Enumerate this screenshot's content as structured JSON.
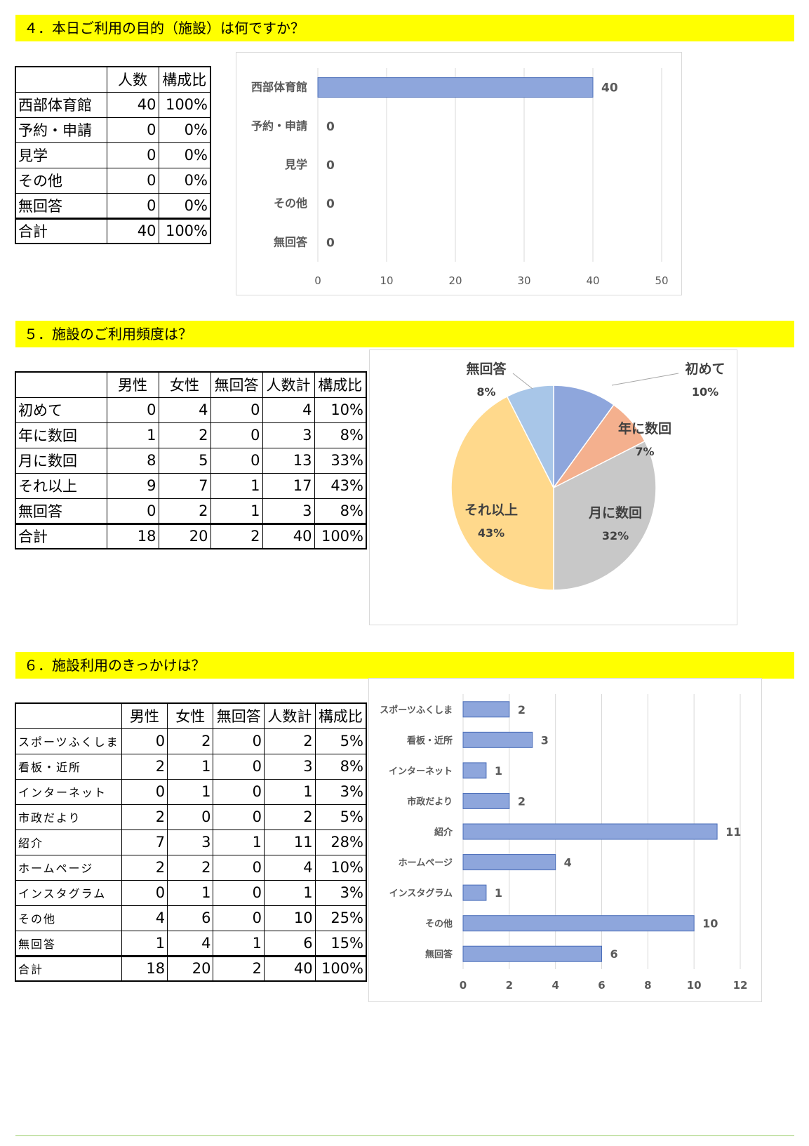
{
  "q4": {
    "title": "４．本日ご利用の目的（施設）は何ですか？",
    "table": {
      "headers": [
        "",
        "人数",
        "構成比"
      ],
      "rows": [
        [
          "西部体育館",
          "40",
          "100%"
        ],
        [
          "予約・申請",
          "0",
          "0%"
        ],
        [
          "見学",
          "0",
          "0%"
        ],
        [
          "その他",
          "0",
          "0%"
        ],
        [
          "無回答",
          "0",
          "0%"
        ]
      ],
      "total": [
        "合計",
        "40",
        "100%"
      ]
    }
  },
  "q5": {
    "title": "５．施設のご利用頻度は？",
    "table": {
      "headers": [
        "",
        "男性",
        "女性",
        "無回答",
        "人数計",
        "構成比"
      ],
      "rows": [
        [
          "初めて",
          "0",
          "4",
          "0",
          "4",
          "10%"
        ],
        [
          "年に数回",
          "1",
          "2",
          "0",
          "3",
          "8%"
        ],
        [
          "月に数回",
          "8",
          "5",
          "0",
          "13",
          "33%"
        ],
        [
          "それ以上",
          "9",
          "7",
          "1",
          "17",
          "43%"
        ],
        [
          "無回答",
          "0",
          "2",
          "1",
          "3",
          "8%"
        ]
      ],
      "total": [
        "合計",
        "18",
        "20",
        "2",
        "40",
        "100%"
      ]
    }
  },
  "q6": {
    "title": "６．施設利用のきっかけは？",
    "table": {
      "headers": [
        "",
        "男性",
        "女性",
        "無回答",
        "人数計",
        "構成比"
      ],
      "rows": [
        [
          "スポーツふくしま",
          "0",
          "2",
          "0",
          "2",
          "5%"
        ],
        [
          "看板・近所",
          "2",
          "1",
          "0",
          "3",
          "8%"
        ],
        [
          "インターネット",
          "0",
          "1",
          "0",
          "1",
          "3%"
        ],
        [
          "市政だより",
          "2",
          "0",
          "0",
          "2",
          "5%"
        ],
        [
          "紹介",
          "7",
          "3",
          "1",
          "11",
          "28%"
        ],
        [
          "ホームページ",
          "2",
          "2",
          "0",
          "4",
          "10%"
        ],
        [
          "インスタグラム",
          "0",
          "1",
          "0",
          "1",
          "3%"
        ],
        [
          "その他",
          "4",
          "6",
          "0",
          "10",
          "25%"
        ],
        [
          "無回答",
          "1",
          "4",
          "1",
          "6",
          "15%"
        ]
      ],
      "total": [
        "合計",
        "18",
        "20",
        "2",
        "40",
        "100%"
      ]
    }
  },
  "chart_data": [
    {
      "type": "bar",
      "orientation": "horizontal",
      "categories": [
        "西部体育館",
        "予約・申請",
        "見学",
        "その他",
        "無回答"
      ],
      "values": [
        40,
        0,
        0,
        0,
        0
      ],
      "xlim": [
        0,
        50
      ],
      "xticks": [
        0,
        10,
        20,
        30,
        40,
        50
      ],
      "grid": true,
      "bar_color": "#8ea6dc"
    },
    {
      "type": "pie",
      "labels": [
        "初めて",
        "年に数回",
        "月に数回",
        "それ以上",
        "無回答"
      ],
      "values": [
        4,
        3,
        13,
        17,
        3
      ],
      "percent_labels": [
        "10%",
        "7%",
        "32%",
        "43%",
        "8%"
      ],
      "colors": [
        "#8ea6dc",
        "#f4b08e",
        "#c8c8c8",
        "#ffd98c",
        "#a8c6e8"
      ]
    },
    {
      "type": "bar",
      "orientation": "horizontal",
      "categories": [
        "スポーツふくしま",
        "看板・近所",
        "インターネット",
        "市政だより",
        "紹介",
        "ホームページ",
        "インスタグラム",
        "その他",
        "無回答"
      ],
      "values": [
        2,
        3,
        1,
        2,
        11,
        4,
        1,
        10,
        6
      ],
      "xlim": [
        0,
        12
      ],
      "xticks": [
        0,
        2,
        4,
        6,
        8,
        10,
        12
      ],
      "grid": true,
      "bar_color": "#8ea6dc"
    }
  ]
}
